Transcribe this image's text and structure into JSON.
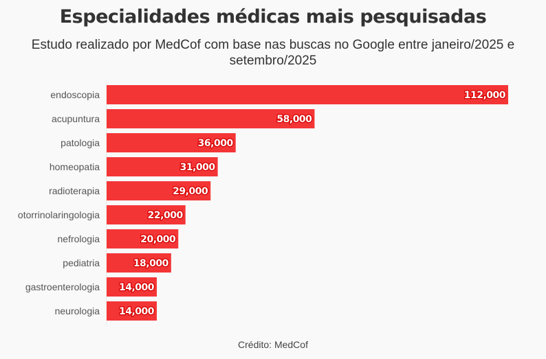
{
  "chart_data": {
    "type": "bar",
    "orientation": "horizontal",
    "title": "Especialidades médicas mais pesquisadas",
    "subtitle": "Estudo realizado por MedCof com base nas buscas no Google entre janeiro/2025 e setembro/2025",
    "credit": "Crédito: MedCof",
    "categories": [
      "endoscopia",
      "acupuntura",
      "patologia",
      "homeopatia",
      "radioterapia",
      "otorrinolaringologia",
      "nefrologia",
      "pediatria",
      "gastroenterologia",
      "neurologia"
    ],
    "values": [
      112000,
      58000,
      36000,
      31000,
      29000,
      22000,
      20000,
      18000,
      14000,
      14000
    ],
    "labels": [
      "112,000",
      "58,000",
      "36,000",
      "31,000",
      "29,000",
      "22,000",
      "20,000",
      "18,000",
      "14,000",
      "14,000"
    ],
    "xlim": [
      0,
      112000
    ],
    "grid": false,
    "bar_color": "#f43536"
  }
}
